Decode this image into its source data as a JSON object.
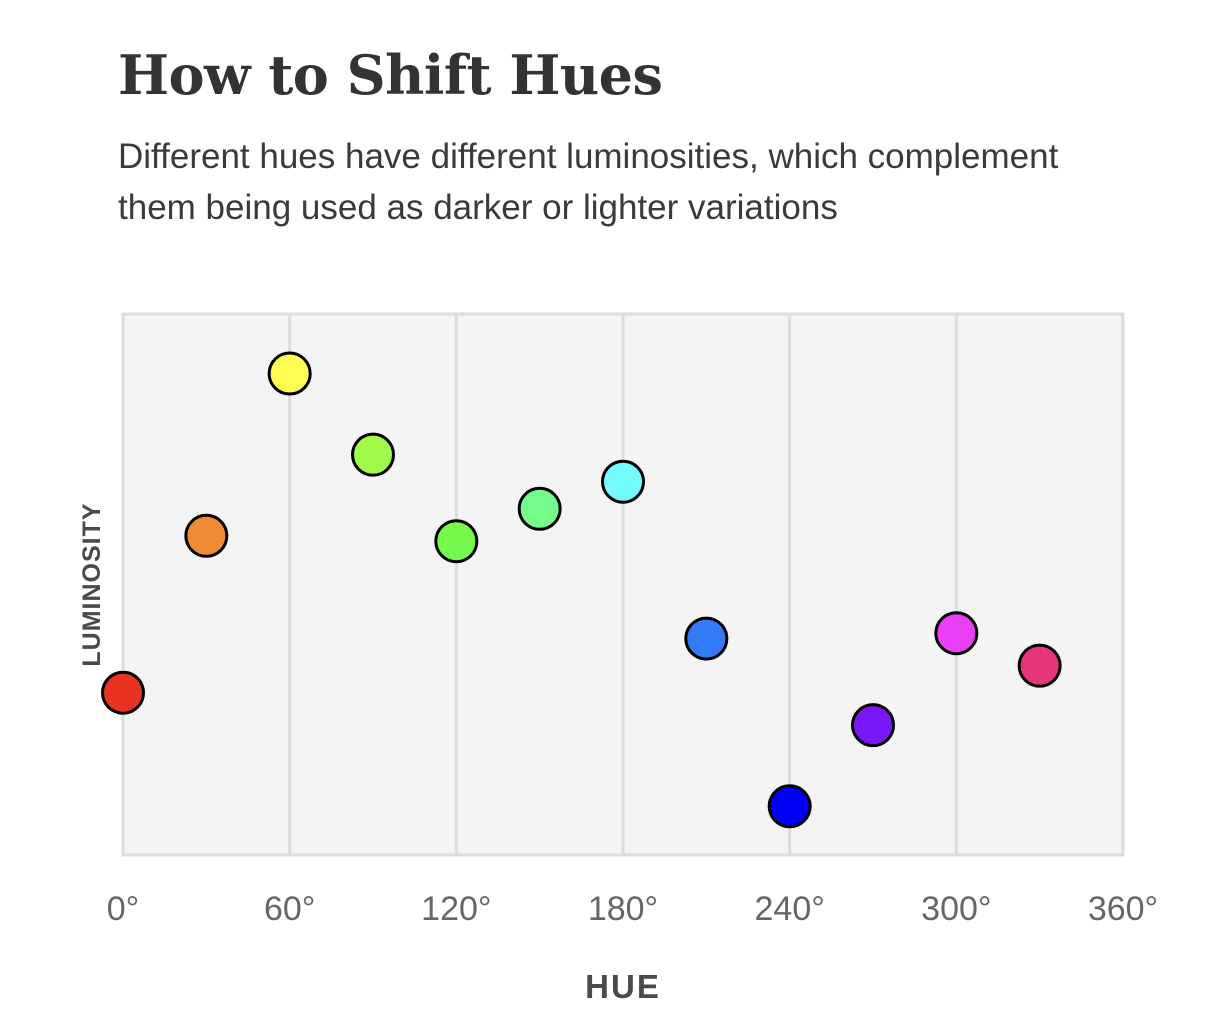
{
  "title": "How to Shift Hues",
  "subtitle": "Different hues have different luminosities, which complement them being used as darker or lighter variations",
  "chart_data": {
    "type": "scatter",
    "xlabel": "HUE",
    "ylabel": "LUMINOSITY",
    "xlim": [
      0,
      360
    ],
    "ylim": [
      0.04,
      1.04
    ],
    "x_ticks": [
      0,
      60,
      120,
      180,
      240,
      300,
      360
    ],
    "x_tick_labels": [
      "0°",
      "60°",
      "120°",
      "180°",
      "240°",
      "300°",
      "360°"
    ],
    "y_ticks_shown": false,
    "grid": "vertical",
    "legend": "none",
    "plot_background": "#f4f4f4",
    "grid_color": "#dddddd",
    "points": [
      {
        "hue": 0,
        "luminosity": 0.34,
        "color": "#e83323"
      },
      {
        "hue": 30,
        "luminosity": 0.63,
        "color": "#f08a34"
      },
      {
        "hue": 60,
        "luminosity": 0.93,
        "color": "#fffd54"
      },
      {
        "hue": 90,
        "luminosity": 0.78,
        "color": "#a1f94a"
      },
      {
        "hue": 120,
        "luminosity": 0.62,
        "color": "#75f94c"
      },
      {
        "hue": 150,
        "luminosity": 0.68,
        "color": "#75fa8c"
      },
      {
        "hue": 180,
        "luminosity": 0.73,
        "color": "#73fbfd"
      },
      {
        "hue": 210,
        "luminosity": 0.44,
        "color": "#3479f6"
      },
      {
        "hue": 240,
        "luminosity": 0.13,
        "color": "#0000f5"
      },
      {
        "hue": 270,
        "luminosity": 0.28,
        "color": "#7a17f6"
      },
      {
        "hue": 300,
        "luminosity": 0.45,
        "color": "#ea3ff7"
      },
      {
        "hue": 330,
        "luminosity": 0.39,
        "color": "#e6367a"
      }
    ]
  }
}
